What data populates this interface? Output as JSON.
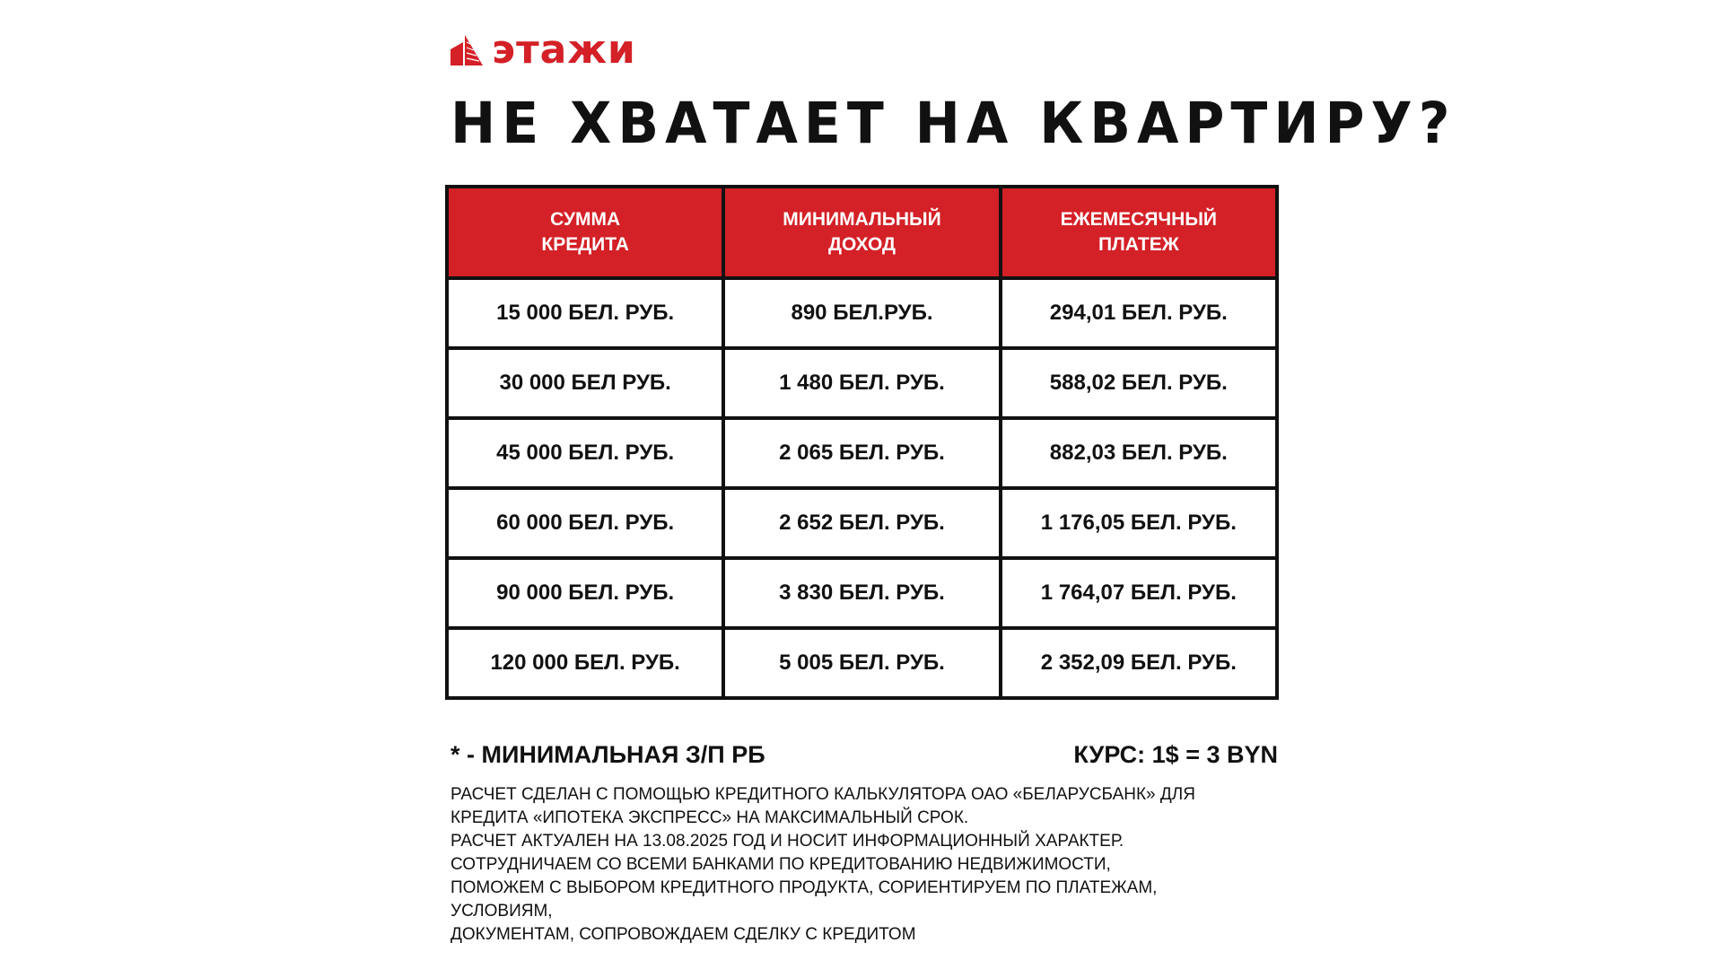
{
  "brand": {
    "name": "этажи",
    "color": "#d42027"
  },
  "title": "НЕ ХВАТАЕТ НА КВАРТИРУ?",
  "table": {
    "headers": [
      [
        "СУММА",
        "КРЕДИТА"
      ],
      [
        "МИНИМАЛЬНЫЙ",
        "ДОХОД"
      ],
      [
        "ЕЖЕМЕСЯЧНЫЙ",
        "ПЛАТЕЖ"
      ]
    ],
    "rows": [
      [
        "15 000 БЕЛ. РУБ.",
        "890 БЕЛ.РУБ.",
        "294,01 БЕЛ. РУБ."
      ],
      [
        "30 000 БЕЛ РУБ.",
        "1 480 БЕЛ. РУБ.",
        "588,02 БЕЛ. РУБ."
      ],
      [
        "45 000 БЕЛ. РУБ.",
        "2 065 БЕЛ. РУБ.",
        "882,03 БЕЛ. РУБ."
      ],
      [
        "60 000 БЕЛ. РУБ.",
        "2 652 БЕЛ. РУБ.",
        "1 176,05 БЕЛ. РУБ."
      ],
      [
        "90 000 БЕЛ. РУБ.",
        "3 830 БЕЛ. РУБ.",
        "1 764,07 БЕЛ. РУБ."
      ],
      [
        "120 000 БЕЛ. РУБ.",
        "5 005 БЕЛ. РУБ.",
        "2 352,09 БЕЛ. РУБ."
      ]
    ]
  },
  "footnote": "* - МИНИМАЛЬНАЯ З/П РБ",
  "rate": "КУРС: 1$ = 3 BYN",
  "notes": [
    "РАСЧЕТ СДЕЛАН С ПОМОЩЬЮ КРЕДИТНОГО КАЛЬКУЛЯТОРА ОАО «БЕЛАРУСБАНК» ДЛЯ",
    "КРЕДИТА «ИПОТЕКА ЭКСПРЕСС» НА МАКСИМАЛЬНЫЙ СРОК.",
    "РАСЧЕТ АКТУАЛЕН НА 13.08.2025 ГОД И НОСИТ ИНФОРМАЦИОННЫЙ ХАРАКТЕР.",
    "СОТРУДНИЧАЕМ СО ВСЕМИ БАНКАМИ ПО КРЕДИТОВАНИЮ НЕДВИЖИМОСТИ,",
    "ПОМОЖЕМ С ВЫБОРОМ КРЕДИТНОГО ПРОДУКТА, СОРИЕНТИРУЕМ ПО ПЛАТЕЖАМ,",
    "УСЛОВИЯМ,",
    "ДОКУМЕНТАМ, СОПРОВОЖДАЕМ СДЕЛКУ С КРЕДИТОМ"
  ]
}
